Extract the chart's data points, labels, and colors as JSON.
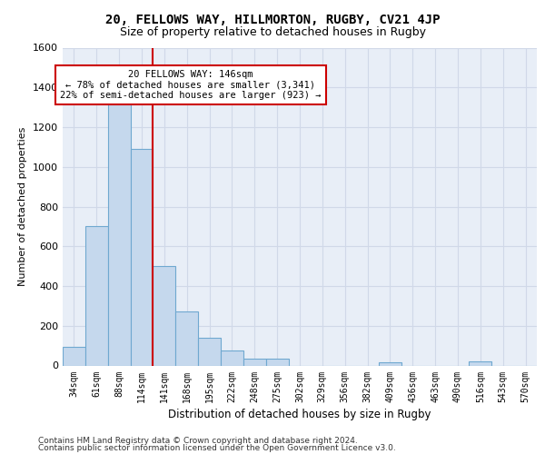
{
  "title1": "20, FELLOWS WAY, HILLMORTON, RUGBY, CV21 4JP",
  "title2": "Size of property relative to detached houses in Rugby",
  "xlabel": "Distribution of detached houses by size in Rugby",
  "ylabel": "Number of detached properties",
  "footer1": "Contains HM Land Registry data © Crown copyright and database right 2024.",
  "footer2": "Contains public sector information licensed under the Open Government Licence v3.0.",
  "categories": [
    "34sqm",
    "61sqm",
    "88sqm",
    "114sqm",
    "141sqm",
    "168sqm",
    "195sqm",
    "222sqm",
    "248sqm",
    "275sqm",
    "302sqm",
    "329sqm",
    "356sqm",
    "382sqm",
    "409sqm",
    "436sqm",
    "463sqm",
    "490sqm",
    "516sqm",
    "543sqm",
    "570sqm"
  ],
  "values": [
    95,
    700,
    1330,
    1090,
    500,
    270,
    140,
    75,
    35,
    35,
    0,
    0,
    0,
    0,
    15,
    0,
    0,
    0,
    20,
    0,
    0
  ],
  "bar_color": "#c5d8ed",
  "bar_edge_color": "#6fa8d0",
  "vline_color": "#cc0000",
  "vline_x": 3.5,
  "annotation_line1": "20 FELLOWS WAY: 146sqm",
  "annotation_line2": "← 78% of detached houses are smaller (3,341)",
  "annotation_line3": "22% of semi-detached houses are larger (923) →",
  "annotation_box_facecolor": "white",
  "annotation_box_edgecolor": "#cc0000",
  "ylim": [
    0,
    1600
  ],
  "yticks": [
    0,
    200,
    400,
    600,
    800,
    1000,
    1200,
    1400,
    1600
  ],
  "plot_bg_color": "#e8eef7",
  "grid_color": "#d0d8e8",
  "title1_fontsize": 10,
  "title2_fontsize": 9,
  "tick_fontsize": 7,
  "ylabel_fontsize": 8,
  "xlabel_fontsize": 8.5,
  "footer_fontsize": 6.5,
  "annot_fontsize": 7.5
}
